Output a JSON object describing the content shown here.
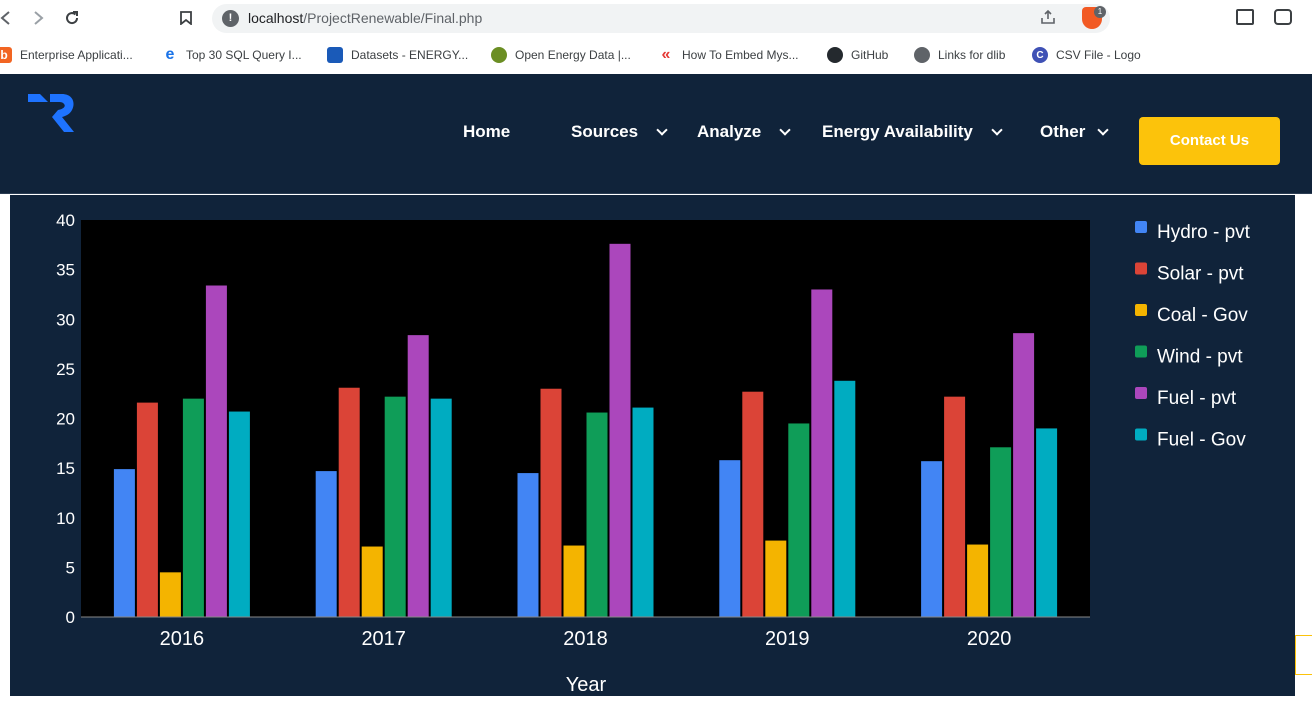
{
  "browser": {
    "url_host": "localhost",
    "url_path": "/ProjectRenewable/Final.php",
    "extension_badge": "1"
  },
  "bookmarks": [
    {
      "label": "Enterprise Applicati...",
      "icon": "orange-square-icon",
      "color": "#f26522"
    },
    {
      "label": "Top 30 SQL Query I...",
      "icon": "edureka-e-icon",
      "color": "#1a73e8"
    },
    {
      "label": "Datasets - ENERGY...",
      "icon": "book-icon",
      "color": "#1a5ab8"
    },
    {
      "label": "Open Energy Data |...",
      "icon": "seal-icon",
      "color": "#6b8e23"
    },
    {
      "label": "How To Embed Mys...",
      "icon": "swoosh-icon",
      "color": "#e53935"
    },
    {
      "label": "GitHub",
      "icon": "github-icon",
      "color": "#24292e"
    },
    {
      "label": "Links for dlib",
      "icon": "globe-icon",
      "color": "#5f6368"
    },
    {
      "label": "CSV File - Logo",
      "icon": "c-logo-icon",
      "color": "#3f51b5"
    }
  ],
  "site": {
    "nav": [
      {
        "label": "Home",
        "dropdown": false
      },
      {
        "label": "Sources",
        "dropdown": true
      },
      {
        "label": "Analyze",
        "dropdown": true
      },
      {
        "label": "Energy Availability",
        "dropdown": true
      },
      {
        "label": "Other",
        "dropdown": true
      }
    ],
    "contact_label": "Contact Us",
    "accent": "#fcc30b",
    "header_bg": "#10233a"
  },
  "chart_data": {
    "type": "bar",
    "xlabel": "Year",
    "ylabel": "",
    "ylim": [
      0,
      40
    ],
    "yticks": [
      0,
      5,
      10,
      15,
      20,
      25,
      30,
      35,
      40
    ],
    "grid": false,
    "legend": "right",
    "categories": [
      "2016",
      "2017",
      "2018",
      "2019",
      "2020"
    ],
    "series": [
      {
        "name": "Hydro - pvt",
        "color": "#4285f4",
        "values": [
          14.9,
          14.7,
          14.5,
          15.8,
          15.7
        ]
      },
      {
        "name": "Solar - pvt",
        "color": "#db4437",
        "values": [
          21.6,
          23.1,
          23.0,
          22.7,
          22.2
        ]
      },
      {
        "name": "Coal - Gov",
        "color": "#f4b400",
        "values": [
          4.5,
          7.1,
          7.2,
          7.7,
          7.3
        ]
      },
      {
        "name": "Wind - pvt",
        "color": "#0f9d58",
        "values": [
          22.0,
          22.2,
          20.6,
          19.5,
          17.1
        ]
      },
      {
        "name": "Fuel - pvt",
        "color": "#ab47bc",
        "values": [
          33.4,
          28.4,
          37.6,
          33.0,
          28.6
        ]
      },
      {
        "name": "Fuel - Gov",
        "color": "#00acc1",
        "values": [
          20.7,
          22.0,
          21.1,
          23.8,
          19.0
        ]
      }
    ]
  }
}
